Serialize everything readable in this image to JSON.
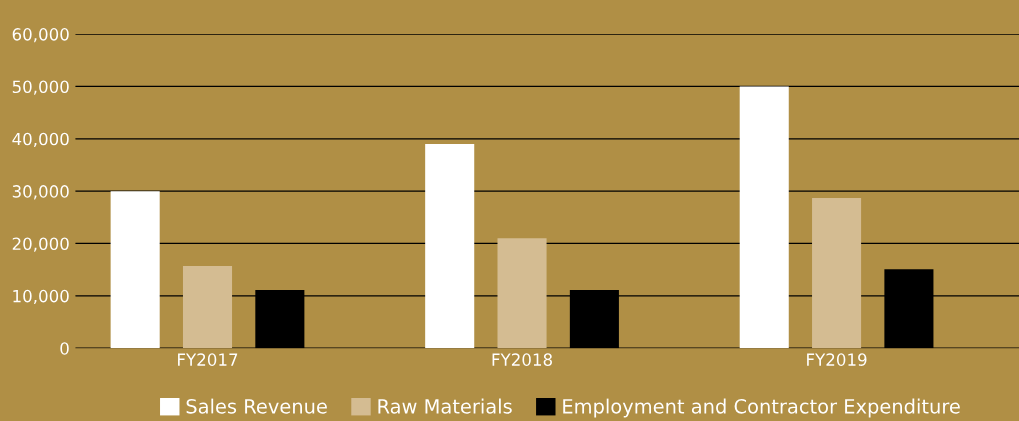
{
  "chart_data": {
    "type": "bar",
    "categories": [
      "FY2017",
      "FY2018",
      "FY2019"
    ],
    "series": [
      {
        "name": "Sales Revenue",
        "color": "#ffffff",
        "values": [
          30000,
          39000,
          50000
        ]
      },
      {
        "name": "Raw Materials",
        "color": "#d4bc92",
        "values": [
          15700,
          21000,
          28700
        ]
      },
      {
        "name": "Employment and Contractor Expenditure",
        "color": "#000000",
        "values": [
          11100,
          11100,
          15100
        ]
      }
    ],
    "ylim": [
      0,
      60000
    ],
    "yticks": [
      {
        "value": 0,
        "label": "0"
      },
      {
        "value": 10000,
        "label": "10,000"
      },
      {
        "value": 20000,
        "label": "20,000"
      },
      {
        "value": 30000,
        "label": "30,000"
      },
      {
        "value": 40000,
        "label": "40,000"
      },
      {
        "value": 50000,
        "label": "50,000"
      },
      {
        "value": 60000,
        "label": "60,000"
      }
    ],
    "grid": "y",
    "legend": "bottom"
  }
}
